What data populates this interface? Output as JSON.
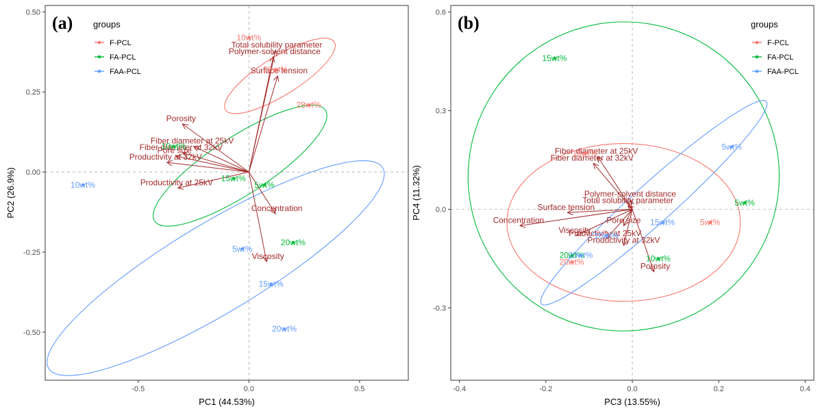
{
  "colors": {
    "F-PCL": "#f8766d",
    "FA-PCL": "#00ba38",
    "FAA-PCL": "#619cff",
    "arrow": "#a32a2a"
  },
  "chart_data": [
    {
      "type": "scatter",
      "panel_label": "(a)",
      "xlabel": "PC1 (44.53%)",
      "ylabel": "PC2 (26.9%)",
      "xlim": [
        -0.92,
        0.72
      ],
      "ylim": [
        -0.65,
        0.52
      ],
      "xticks": [
        -0.5,
        0.0,
        0.5
      ],
      "xtick_labels": [
        "-0.5",
        "0.0",
        "0.5"
      ],
      "yticks": [
        -0.5,
        -0.25,
        0.0,
        0.25,
        0.5
      ],
      "ytick_labels": [
        "-0.50",
        "-0.25",
        "0.00",
        "0.25",
        "0.50"
      ],
      "legend": {
        "title": "groups",
        "position": "top-left",
        "entries": [
          "F-PCL",
          "FA-PCL",
          "FAA-PCL"
        ]
      },
      "points": [
        {
          "group": "F-PCL",
          "label": "10wt%",
          "x": 0.0,
          "y": 0.42
        },
        {
          "group": "F-PCL",
          "label": "20wt%",
          "x": 0.12,
          "y": 0.32
        },
        {
          "group": "F-PCL",
          "label": "28wt%",
          "x": 0.27,
          "y": 0.21
        },
        {
          "group": "FA-PCL",
          "label": "10wt%",
          "x": -0.34,
          "y": 0.08
        },
        {
          "group": "FA-PCL",
          "label": "15wt%",
          "x": -0.07,
          "y": -0.02
        },
        {
          "group": "FA-PCL",
          "label": "5wt%",
          "x": 0.07,
          "y": -0.04
        },
        {
          "group": "FA-PCL",
          "label": "20wt%",
          "x": 0.2,
          "y": -0.22
        },
        {
          "group": "FAA-PCL",
          "label": "10wt%",
          "x": -0.75,
          "y": -0.04
        },
        {
          "group": "FAA-PCL",
          "label": "5wt%",
          "x": -0.03,
          "y": -0.24
        },
        {
          "group": "FAA-PCL",
          "label": "15wt%",
          "x": 0.1,
          "y": -0.35
        },
        {
          "group": "FAA-PCL",
          "label": "20wt%",
          "x": 0.16,
          "y": -0.49
        }
      ],
      "ellipses": [
        {
          "group": "F-PCL",
          "cx": 0.14,
          "cy": 0.3,
          "rx": 0.29,
          "ry": 0.06,
          "angle_deg": 32
        },
        {
          "group": "FA-PCL",
          "cx": -0.04,
          "cy": 0.02,
          "rx": 0.46,
          "ry": 0.09,
          "angle_deg": 33
        },
        {
          "group": "FAA-PCL",
          "cx": -0.15,
          "cy": -0.3,
          "rx": 0.88,
          "ry": 0.14,
          "angle_deg": 31
        }
      ],
      "vectors": [
        {
          "name": "Total solubility parameter",
          "x": 0.12,
          "y": 0.38
        },
        {
          "name": "Polymer-solvent distance",
          "x": 0.11,
          "y": 0.36
        },
        {
          "name": "Surface tension",
          "x": 0.13,
          "y": 0.3
        },
        {
          "name": "Porosity",
          "x": -0.3,
          "y": 0.15
        },
        {
          "name": "Fiber diameter at 25kV",
          "x": -0.25,
          "y": 0.08
        },
        {
          "name": "Fiber diameter at 32kV",
          "x": -0.3,
          "y": 0.06
        },
        {
          "name": "Pore size",
          "x": -0.33,
          "y": 0.05
        },
        {
          "name": "Productivity at 32kV",
          "x": -0.37,
          "y": 0.03
        },
        {
          "name": "Productivity at 25kV",
          "x": -0.32,
          "y": -0.05
        },
        {
          "name": "Concentration",
          "x": 0.12,
          "y": -0.13
        },
        {
          "name": "Viscosity",
          "x": 0.08,
          "y": -0.28
        }
      ]
    },
    {
      "type": "scatter",
      "panel_label": "(b)",
      "xlabel": "PC3 (13.55%)",
      "ylabel": "PC4 (11.32%)",
      "xlim": [
        -0.42,
        0.42
      ],
      "ylim": [
        -0.52,
        0.62
      ],
      "xticks": [
        -0.4,
        -0.2,
        0.0,
        0.2,
        0.4
      ],
      "xtick_labels": [
        "-0.4",
        "-0.2",
        "0.0",
        "0.2",
        "0.4"
      ],
      "yticks": [
        -0.3,
        0.0,
        0.3,
        0.6
      ],
      "ytick_labels": [
        "-0.3",
        "0.0",
        "0.3",
        "0.6"
      ],
      "legend": {
        "title": "groups",
        "position": "top-right",
        "entries": [
          "F-PCL",
          "FA-PCL",
          "FAA-PCL"
        ]
      },
      "points": [
        {
          "group": "F-PCL",
          "label": "15wt%",
          "x": -0.11,
          "y": 0.17
        },
        {
          "group": "F-PCL",
          "label": "5wt%",
          "x": 0.18,
          "y": -0.04
        },
        {
          "group": "F-PCL",
          "label": "20wt%",
          "x": -0.14,
          "y": -0.16
        },
        {
          "group": "FA-PCL",
          "label": "15wt%",
          "x": -0.18,
          "y": 0.46
        },
        {
          "group": "FA-PCL",
          "label": "5wt%",
          "x": 0.26,
          "y": 0.02
        },
        {
          "group": "FA-PCL",
          "label": "10wt%",
          "x": 0.06,
          "y": -0.15
        },
        {
          "group": "FA-PCL",
          "label": "20wt%",
          "x": -0.14,
          "y": -0.14
        },
        {
          "group": "FAA-PCL",
          "label": "5wt%",
          "x": 0.23,
          "y": 0.19
        },
        {
          "group": "FAA-PCL",
          "label": "15wt%",
          "x": 0.07,
          "y": -0.04
        },
        {
          "group": "FAA-PCL",
          "label": "10wt%",
          "x": -0.06,
          "y": -0.08
        },
        {
          "group": "FAA-PCL",
          "label": "20wt%",
          "x": -0.12,
          "y": -0.14
        }
      ],
      "ellipses": [
        {
          "group": "F-PCL",
          "cx": -0.02,
          "cy": -0.04,
          "rx": 0.27,
          "ry": 0.24,
          "angle_deg": 0
        },
        {
          "group": "FA-PCL",
          "cx": -0.02,
          "cy": 0.1,
          "rx": 0.36,
          "ry": 0.47,
          "angle_deg": 12
        },
        {
          "group": "FAA-PCL",
          "cx": 0.05,
          "cy": 0.02,
          "rx": 0.35,
          "ry": 0.06,
          "angle_deg": 42
        }
      ],
      "vectors": [
        {
          "name": "Fiber diameter at 25kV",
          "x": -0.08,
          "y": 0.16
        },
        {
          "name": "Fiber diameter at 32kV",
          "x": -0.09,
          "y": 0.14
        },
        {
          "name": "Polymer-solvent distance",
          "x": -0.005,
          "y": 0.03
        },
        {
          "name": "Total solubility parameter",
          "x": -0.01,
          "y": 0.01
        },
        {
          "name": "Surface tension",
          "x": -0.15,
          "y": -0.01
        },
        {
          "name": "Concentration",
          "x": -0.26,
          "y": -0.05
        },
        {
          "name": "Pore size",
          "x": -0.02,
          "y": -0.05
        },
        {
          "name": "Viscosity",
          "x": -0.13,
          "y": -0.08
        },
        {
          "name": "Productivity at 25kV",
          "x": -0.06,
          "y": -0.09
        },
        {
          "name": "Productivity at 32kV",
          "x": -0.02,
          "y": -0.11
        },
        {
          "name": "Porosity",
          "x": 0.05,
          "y": -0.19
        }
      ]
    }
  ]
}
